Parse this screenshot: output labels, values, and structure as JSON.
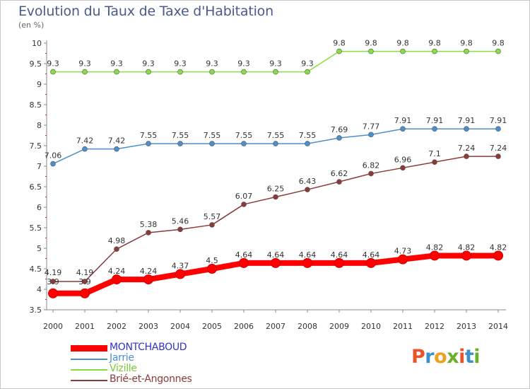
{
  "title": "Evolution du Taux de Taxe d'Habitation",
  "unit": "(en %)",
  "logo": "Proxiti",
  "chart_data": {
    "type": "line",
    "x": [
      "2000",
      "2001",
      "2002",
      "2003",
      "2004",
      "2005",
      "2006",
      "2007",
      "2008",
      "2009",
      "2010",
      "2011",
      "2012",
      "2013",
      "2014"
    ],
    "y_ticks": [
      "3.5",
      "4",
      "4.5",
      "5",
      "5.5",
      "6",
      "6.5",
      "7",
      "7.5",
      "8",
      "8.5",
      "9",
      "9.5",
      "10"
    ],
    "ylim": [
      3.5,
      10
    ],
    "grid": false,
    "legend_position": "bottom-left",
    "series": [
      {
        "name": "MONTCHABOUD",
        "color": "#ff0000",
        "label_color": "#3333cc",
        "values": [
          3.9,
          3.9,
          4.24,
          4.24,
          4.37,
          4.5,
          4.64,
          4.64,
          4.64,
          4.64,
          4.64,
          4.73,
          4.82,
          4.82,
          4.82
        ],
        "labels": [
          "3.9",
          "3.9",
          "4.24",
          "4.24",
          "4.37",
          "4.5",
          "4.64",
          "4.64",
          "4.64",
          "4.64",
          "4.64",
          "4.73",
          "4.82",
          "4.82",
          "4.82"
        ]
      },
      {
        "name": "Jarrie",
        "color": "#4d8fcc",
        "label_color": "#4d8fcc",
        "values": [
          7.06,
          7.42,
          7.42,
          7.55,
          7.55,
          7.55,
          7.55,
          7.55,
          7.55,
          7.69,
          7.77,
          7.91,
          7.91,
          7.91,
          7.91
        ],
        "labels": [
          "7.06",
          "7.42",
          "7.42",
          "7.55",
          "7.55",
          "7.55",
          "7.55",
          "7.55",
          "7.55",
          "7.69",
          "7.77",
          "7.91",
          "7.91",
          "7.91",
          "7.91"
        ]
      },
      {
        "name": "Vizille",
        "color": "#88dd44",
        "label_color": "#77cc33",
        "values": [
          9.3,
          9.3,
          9.3,
          9.3,
          9.3,
          9.3,
          9.3,
          9.3,
          9.3,
          9.8,
          9.8,
          9.8,
          9.8,
          9.8,
          9.8
        ],
        "labels": [
          "9.3",
          "9.3",
          "9.3",
          "9.3",
          "9.3",
          "9.3",
          "9.3",
          "9.3",
          "9.3",
          "9.8",
          "9.8",
          "9.8",
          "9.8",
          "9.8",
          "9.8"
        ]
      },
      {
        "name": "Brié-et-Angonnes",
        "color": "#8b3a3a",
        "label_color": "#8b3a3a",
        "values": [
          4.19,
          4.19,
          4.98,
          5.38,
          5.46,
          5.57,
          6.07,
          6.25,
          6.43,
          6.62,
          6.82,
          6.96,
          7.1,
          7.24,
          7.24
        ],
        "labels": [
          "4.19",
          "4.19",
          "4.98",
          "5.38",
          "5.46",
          "5.57",
          "6.07",
          "6.25",
          "6.43",
          "6.62",
          "6.82",
          "6.96",
          "7.1",
          "7.24",
          "7.24"
        ]
      }
    ]
  }
}
